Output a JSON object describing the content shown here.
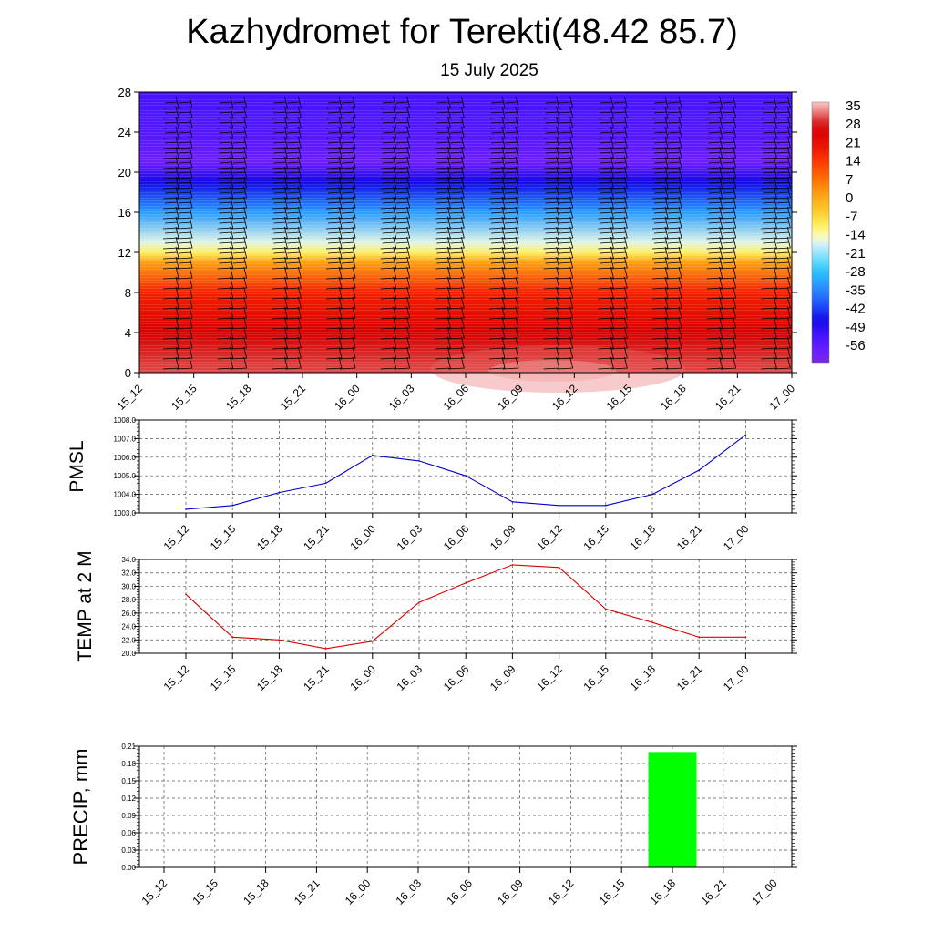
{
  "title": "Kazhydromet for Terekti(48.42 85.7)",
  "subtitle": "15 July 2025",
  "time_labels": [
    "15_12",
    "15_15",
    "15_18",
    "15_21",
    "16_00",
    "16_03",
    "16_06",
    "16_09",
    "16_12",
    "16_15",
    "16_18",
    "16_21",
    "17_00"
  ],
  "colors": {
    "pmsl_line": "#0000cc",
    "temp_line": "#dd0000",
    "precip_bar": "#00ff00",
    "wind_barb": "#000000"
  },
  "chart_data": [
    {
      "type": "heatmap",
      "name": "vertical-section",
      "ylim": [
        0,
        28
      ],
      "y_ticks": [
        0,
        4,
        8,
        12,
        16,
        20,
        24,
        28
      ],
      "x_categories": [
        "15_12",
        "15_15",
        "15_18",
        "15_21",
        "16_00",
        "16_03",
        "16_06",
        "16_09",
        "16_12",
        "16_15",
        "16_18",
        "16_21",
        "17_00"
      ],
      "colorbar_labels": [
        "35",
        "28",
        "21",
        "14",
        "7",
        "0",
        "-7",
        "-14",
        "-21",
        "-28",
        "-35",
        "-42",
        "-49",
        "-56"
      ],
      "colorbar_range": [
        -60,
        39
      ],
      "temperature_profile": [
        {
          "level": 0,
          "value": 33
        },
        {
          "level": 4,
          "value": 28
        },
        {
          "level": 8,
          "value": 20
        },
        {
          "level": 11,
          "value": 4
        },
        {
          "level": 12,
          "value": -8
        },
        {
          "level": 13,
          "value": -14
        },
        {
          "level": 16,
          "value": -30
        },
        {
          "level": 19,
          "value": -44
        },
        {
          "level": 21,
          "value": -56
        },
        {
          "level": 24,
          "value": -52
        },
        {
          "level": 28,
          "value": -50
        }
      ],
      "wind_barbs": "true"
    },
    {
      "type": "line",
      "name": "pmsl",
      "ylabel": "PMSL",
      "ylim": [
        1003.0,
        1008.0
      ],
      "y_ticks": [
        "1003.0",
        "1004.0",
        "1005.0",
        "1006.0",
        "1007.0",
        "1008.0"
      ],
      "categories": [
        "15_12",
        "15_15",
        "15_18",
        "15_21",
        "16_00",
        "16_03",
        "16_06",
        "16_09",
        "16_12",
        "16_15",
        "16_18",
        "16_21",
        "17_00"
      ],
      "values": [
        1003.2,
        1003.4,
        1004.1,
        1004.6,
        1006.1,
        1005.8,
        1005.0,
        1003.6,
        1003.4,
        1003.4,
        1004.0,
        1005.3,
        1007.2
      ]
    },
    {
      "type": "line",
      "name": "temp",
      "ylabel": "TEMP at 2 M",
      "ylim": [
        20.0,
        34.0
      ],
      "y_ticks": [
        "20.0",
        "22.0",
        "24.0",
        "26.0",
        "28.0",
        "30.0",
        "32.0",
        "34.0"
      ],
      "categories": [
        "15_12",
        "15_15",
        "15_18",
        "15_21",
        "16_00",
        "16_03",
        "16_06",
        "16_09",
        "16_12",
        "16_15",
        "16_18",
        "16_21",
        "17_00"
      ],
      "values": [
        28.8,
        22.4,
        22.0,
        20.7,
        21.8,
        27.6,
        30.5,
        33.2,
        32.8,
        26.6,
        24.6,
        22.4,
        22.4
      ]
    },
    {
      "type": "bar",
      "name": "precip",
      "ylabel": "PRECIP, mm",
      "ylim": [
        0,
        0.21
      ],
      "y_ticks": [
        "0.00",
        "0.03",
        "0.06",
        "0.09",
        "0.12",
        "0.15",
        "0.18",
        "0.21"
      ],
      "categories": [
        "15_12",
        "15_15",
        "15_18",
        "15_21",
        "16_00",
        "16_03",
        "16_06",
        "16_09",
        "16_12",
        "16_15",
        "16_18",
        "16_21",
        "17_00"
      ],
      "values": [
        0,
        0,
        0,
        0,
        0,
        0,
        0,
        0,
        0,
        0,
        0.2,
        0,
        0
      ]
    }
  ]
}
